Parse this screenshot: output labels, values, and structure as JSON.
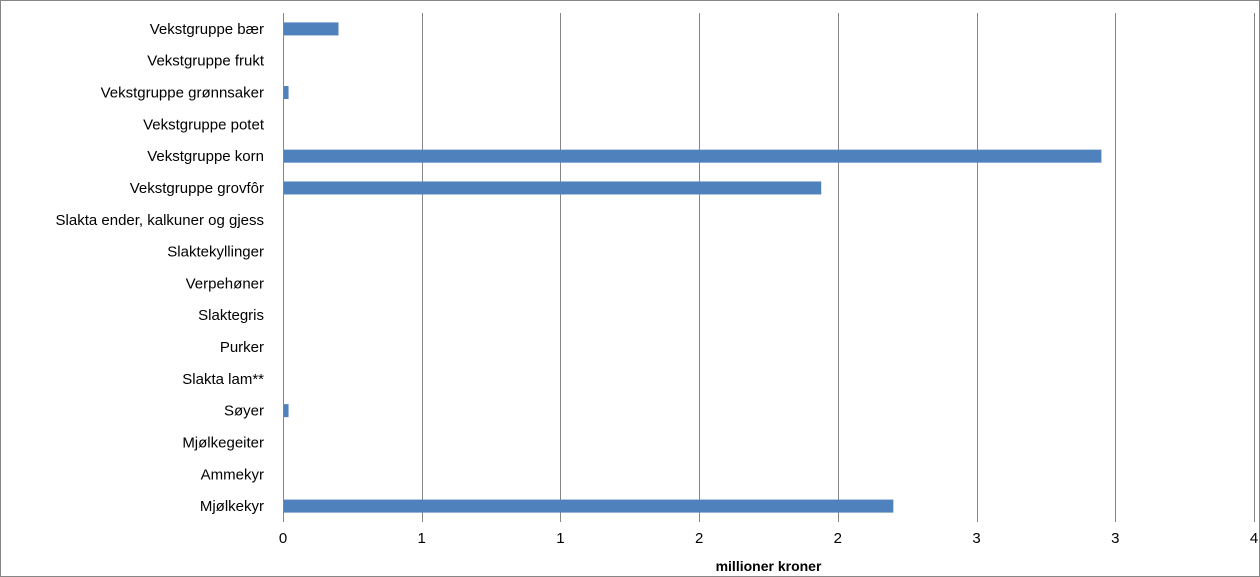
{
  "chart_data": {
    "type": "bar",
    "orientation": "horizontal",
    "categories": [
      "Vekstgruppe bær",
      "Vekstgruppe frukt",
      "Vekstgruppe grønnsaker",
      "Vekstgruppe potet",
      "Vekstgruppe korn",
      "Vekstgruppe grovfôr",
      "Slakta ender, kalkuner og gjess",
      "Slaktekyllinger",
      "Verpehøner",
      "Slaktegris",
      "Purker",
      "Slakta lam**",
      "Søyer",
      "Mjølkegeiter",
      "Ammekyr",
      "Mjølkekyr"
    ],
    "values": [
      0.2,
      0,
      0.02,
      0,
      2.95,
      1.94,
      0,
      0,
      0,
      0,
      0,
      0,
      0.02,
      0,
      0,
      2.2
    ],
    "xlim": [
      0,
      3.5
    ],
    "xticks": [
      0,
      0.5,
      1,
      1.5,
      2,
      2.5,
      3,
      3.5
    ],
    "xtick_labels": [
      "0",
      "1",
      "1",
      "2",
      "2",
      "3",
      "3",
      "4"
    ],
    "xlabel": "millioner kroner",
    "ylabel": "",
    "title": "",
    "grid": "vertical",
    "legend": "none",
    "bar_color": "#4f81bd",
    "gridline_color": "#868686"
  }
}
